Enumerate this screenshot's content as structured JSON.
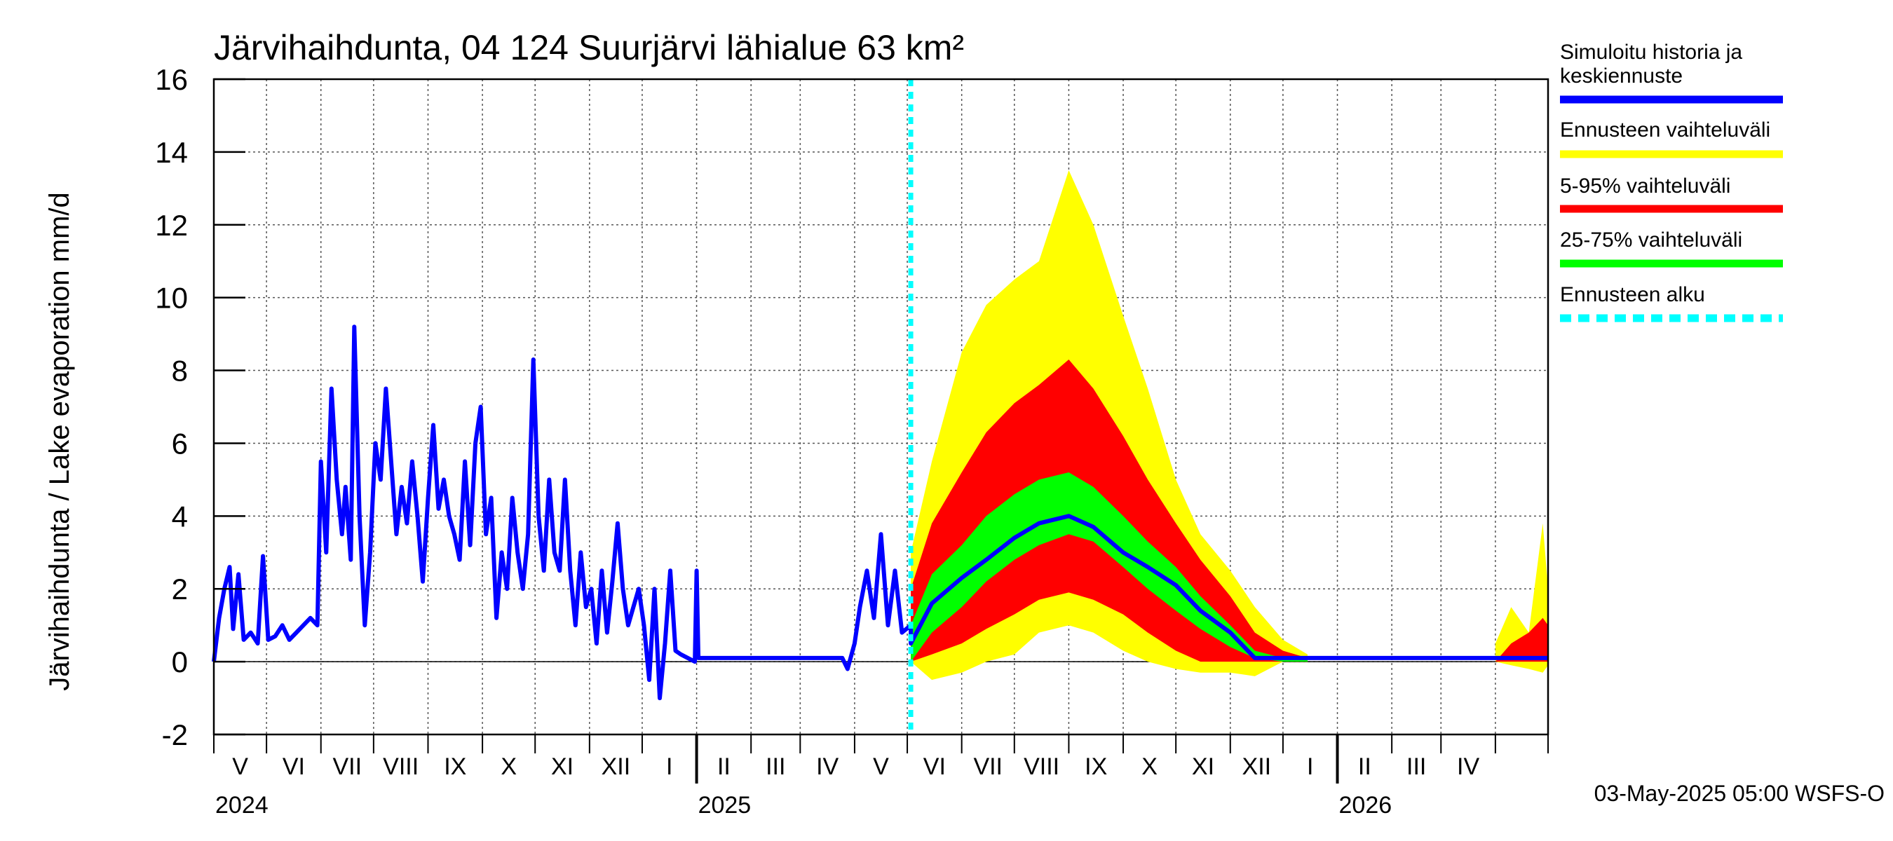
{
  "chart_data": {
    "type": "area",
    "title": "Järvihaihdunta, 04 124 Suurjärvi lähialue 63 km²",
    "ylabel": "Järvihaihdunta / Lake evaporation   mm/d",
    "ylim": [
      -2,
      16
    ],
    "yticks": [
      -2,
      0,
      2,
      4,
      6,
      8,
      10,
      12,
      14,
      16
    ],
    "grid": true,
    "legend_position": "right",
    "x_range": [
      "2024-04-01",
      "2026-05-01"
    ],
    "month_labels": [
      "V",
      "VI",
      "VII",
      "VIII",
      "IX",
      "X",
      "XI",
      "XII",
      "I",
      "II",
      "III",
      "IV",
      "V",
      "VI",
      "VII",
      "VIII",
      "IX",
      "X",
      "XI",
      "XII",
      "I",
      "II",
      "III",
      "IV"
    ],
    "year_labels": [
      {
        "label": "2024",
        "date": "2024-04-01"
      },
      {
        "label": "2025",
        "date": "2025-01-01"
      },
      {
        "label": "2026",
        "date": "2026-01-01"
      }
    ],
    "forecast_start": "2025-05-03",
    "legend": [
      {
        "label": "Simuloitu historia ja\nkeskiennuste",
        "color": "#0000ff",
        "style": "solid"
      },
      {
        "label": "Ennusteen vaihteluväli",
        "color": "#ffff00",
        "style": "solid"
      },
      {
        "label": "5-95% vaihteluväli",
        "color": "#ff0000",
        "style": "solid"
      },
      {
        "label": "25-75% vaihteluväli",
        "color": "#00ff00",
        "style": "solid"
      },
      {
        "label": "Ennusteen alku",
        "color": "#00ffff",
        "style": "dashed"
      }
    ],
    "history_series": {
      "name": "Simuloitu historia ja keskiennuste",
      "color": "#0000ff",
      "points": [
        [
          "2024-04-01",
          0.0
        ],
        [
          "2024-04-04",
          1.2
        ],
        [
          "2024-04-07",
          2.0
        ],
        [
          "2024-04-10",
          2.6
        ],
        [
          "2024-04-12",
          0.9
        ],
        [
          "2024-04-15",
          2.4
        ],
        [
          "2024-04-18",
          0.6
        ],
        [
          "2024-04-22",
          0.8
        ],
        [
          "2024-04-26",
          0.5
        ],
        [
          "2024-04-29",
          2.9
        ],
        [
          "2024-05-02",
          0.6
        ],
        [
          "2024-05-06",
          0.7
        ],
        [
          "2024-05-10",
          1.0
        ],
        [
          "2024-05-14",
          0.6
        ],
        [
          "2024-05-18",
          0.8
        ],
        [
          "2024-05-22",
          1.0
        ],
        [
          "2024-05-26",
          1.2
        ],
        [
          "2024-05-30",
          1.0
        ],
        [
          "2024-06-01",
          5.5
        ],
        [
          "2024-06-04",
          3.0
        ],
        [
          "2024-06-07",
          7.5
        ],
        [
          "2024-06-10",
          5.0
        ],
        [
          "2024-06-13",
          3.5
        ],
        [
          "2024-06-15",
          4.8
        ],
        [
          "2024-06-18",
          2.8
        ],
        [
          "2024-06-20",
          9.2
        ],
        [
          "2024-06-23",
          4.0
        ],
        [
          "2024-06-26",
          1.0
        ],
        [
          "2024-06-29",
          3.0
        ],
        [
          "2024-07-02",
          6.0
        ],
        [
          "2024-07-05",
          5.0
        ],
        [
          "2024-07-08",
          7.5
        ],
        [
          "2024-07-11",
          5.5
        ],
        [
          "2024-07-14",
          3.5
        ],
        [
          "2024-07-17",
          4.8
        ],
        [
          "2024-07-20",
          3.8
        ],
        [
          "2024-07-23",
          5.5
        ],
        [
          "2024-07-26",
          4.0
        ],
        [
          "2024-07-29",
          2.2
        ],
        [
          "2024-08-01",
          4.5
        ],
        [
          "2024-08-04",
          6.5
        ],
        [
          "2024-08-07",
          4.2
        ],
        [
          "2024-08-10",
          5.0
        ],
        [
          "2024-08-13",
          4.0
        ],
        [
          "2024-08-16",
          3.5
        ],
        [
          "2024-08-19",
          2.8
        ],
        [
          "2024-08-22",
          5.5
        ],
        [
          "2024-08-25",
          3.2
        ],
        [
          "2024-08-28",
          6.0
        ],
        [
          "2024-08-31",
          7.0
        ],
        [
          "2024-09-03",
          3.5
        ],
        [
          "2024-09-06",
          4.5
        ],
        [
          "2024-09-09",
          1.2
        ],
        [
          "2024-09-12",
          3.0
        ],
        [
          "2024-09-15",
          2.0
        ],
        [
          "2024-09-18",
          4.5
        ],
        [
          "2024-09-21",
          3.0
        ],
        [
          "2024-09-24",
          2.0
        ],
        [
          "2024-09-27",
          3.5
        ],
        [
          "2024-09-30",
          8.3
        ],
        [
          "2024-10-03",
          4.0
        ],
        [
          "2024-10-06",
          2.5
        ],
        [
          "2024-10-09",
          5.0
        ],
        [
          "2024-10-12",
          3.0
        ],
        [
          "2024-10-15",
          2.5
        ],
        [
          "2024-10-18",
          5.0
        ],
        [
          "2024-10-21",
          2.5
        ],
        [
          "2024-10-24",
          1.0
        ],
        [
          "2024-10-27",
          3.0
        ],
        [
          "2024-10-30",
          1.5
        ],
        [
          "2024-11-02",
          2.0
        ],
        [
          "2024-11-05",
          0.5
        ],
        [
          "2024-11-08",
          2.5
        ],
        [
          "2024-11-11",
          0.8
        ],
        [
          "2024-11-14",
          2.2
        ],
        [
          "2024-11-17",
          3.8
        ],
        [
          "2024-11-20",
          2.0
        ],
        [
          "2024-11-23",
          1.0
        ],
        [
          "2024-11-26",
          1.5
        ],
        [
          "2024-11-29",
          2.0
        ],
        [
          "2024-12-02",
          1.0
        ],
        [
          "2024-12-05",
          -0.5
        ],
        [
          "2024-12-08",
          2.0
        ],
        [
          "2024-12-11",
          -1.0
        ],
        [
          "2024-12-14",
          0.5
        ],
        [
          "2024-12-17",
          2.5
        ],
        [
          "2024-12-20",
          0.3
        ],
        [
          "2024-12-23",
          0.2
        ],
        [
          "2024-12-27",
          0.1
        ],
        [
          "2024-12-31",
          0.0
        ],
        [
          "2025-01-01",
          2.5
        ],
        [
          "2025-01-02",
          0.1
        ],
        [
          "2025-03-25",
          0.1
        ],
        [
          "2025-03-28",
          -0.2
        ],
        [
          "2025-04-01",
          0.5
        ],
        [
          "2025-04-04",
          1.5
        ],
        [
          "2025-04-08",
          2.5
        ],
        [
          "2025-04-12",
          1.2
        ],
        [
          "2025-04-16",
          3.5
        ],
        [
          "2025-04-20",
          1.0
        ],
        [
          "2025-04-24",
          2.5
        ],
        [
          "2025-04-28",
          0.8
        ],
        [
          "2025-05-03",
          1.0
        ]
      ]
    },
    "forecast_percentiles": {
      "dates": [
        "2025-05-03",
        "2025-05-15",
        "2025-06-01",
        "2025-06-15",
        "2025-07-01",
        "2025-07-15",
        "2025-08-01",
        "2025-08-15",
        "2025-09-01",
        "2025-09-15",
        "2025-10-01",
        "2025-10-15",
        "2025-11-01",
        "2025-11-15",
        "2025-12-01",
        "2025-12-15"
      ],
      "min": [
        0.0,
        -0.5,
        -0.3,
        0.0,
        0.2,
        0.8,
        1.0,
        0.8,
        0.3,
        0.0,
        -0.2,
        -0.3,
        -0.3,
        -0.4,
        0.0,
        0.0
      ],
      "p5": [
        0.0,
        0.2,
        0.5,
        0.9,
        1.3,
        1.7,
        1.9,
        1.7,
        1.3,
        0.8,
        0.3,
        0.0,
        0.0,
        0.0,
        0.0,
        0.0
      ],
      "p25": [
        0.0,
        0.8,
        1.5,
        2.2,
        2.8,
        3.2,
        3.5,
        3.3,
        2.6,
        2.0,
        1.4,
        0.9,
        0.4,
        0.1,
        0.0,
        0.0
      ],
      "median": [
        0.5,
        1.6,
        2.3,
        2.8,
        3.4,
        3.8,
        4.0,
        3.7,
        3.0,
        2.6,
        2.1,
        1.4,
        0.8,
        0.1,
        0.1,
        0.1
      ],
      "p75": [
        1.0,
        2.4,
        3.2,
        4.0,
        4.6,
        5.0,
        5.2,
        4.8,
        4.0,
        3.3,
        2.6,
        1.8,
        1.0,
        0.3,
        0.1,
        0.1
      ],
      "p95": [
        2.0,
        3.8,
        5.2,
        6.3,
        7.1,
        7.6,
        8.3,
        7.5,
        6.2,
        5.0,
        3.8,
        2.8,
        1.8,
        0.8,
        0.3,
        0.1
      ],
      "max": [
        3.0,
        5.5,
        8.5,
        9.8,
        10.5,
        11.0,
        13.5,
        12.0,
        9.5,
        7.5,
        5.0,
        3.5,
        2.5,
        1.5,
        0.6,
        0.2
      ]
    },
    "forecast_mean_after": {
      "from": "2025-11-15",
      "to": "2026-05-01",
      "value": 0.1
    },
    "spring_2026_spread": {
      "dates": [
        "2026-04-01",
        "2026-04-10",
        "2026-04-20",
        "2026-04-28",
        "2026-05-01"
      ],
      "min": [
        0.0,
        -0.1,
        -0.2,
        -0.3,
        -0.1
      ],
      "p5": [
        0.0,
        0.0,
        0.0,
        0.0,
        0.0
      ],
      "p95": [
        0.0,
        0.5,
        0.8,
        1.2,
        1.0
      ],
      "max": [
        0.5,
        1.5,
        0.8,
        3.8,
        2.0
      ]
    },
    "footer": "03-May-2025 05:00 WSFS-O"
  }
}
